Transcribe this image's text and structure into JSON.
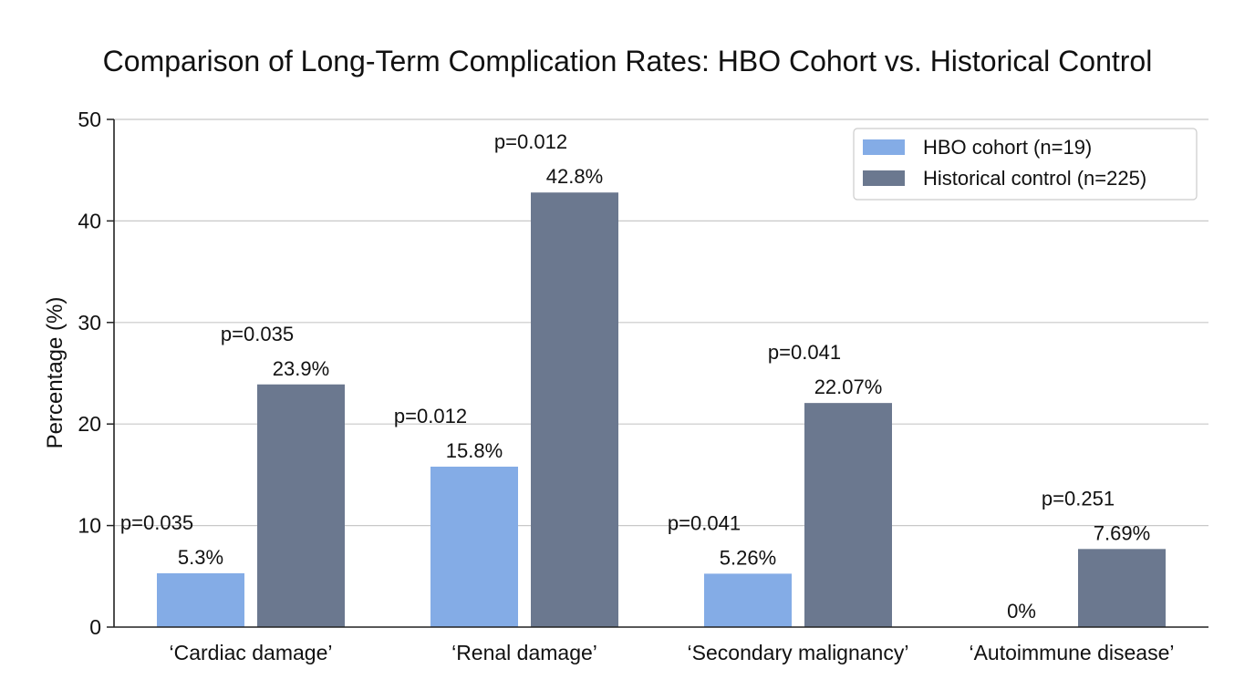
{
  "chart_data": {
    "type": "bar",
    "title": "Comparison of Long-Term Complication Rates: HBO Cohort vs. Historical Control",
    "ylabel": "Percentage (%)",
    "xlabel": "",
    "ylim": [
      0,
      50
    ],
    "yticks": [
      0,
      10,
      20,
      30,
      40,
      50
    ],
    "grid": true,
    "legend_position": "top-right",
    "categories": [
      "‘Cardiac damage’",
      "‘Renal damage’",
      "‘Secondary malignancy’",
      "‘Autoimmune disease’"
    ],
    "series": [
      {
        "name": "HBO cohort (n=19)",
        "color": "#84ace6",
        "values": [
          5.3,
          15.8,
          5.26,
          0
        ],
        "value_labels": [
          "5.3%",
          "15.8%",
          "5.26%",
          "0%"
        ],
        "p_labels": [
          "p=0.035",
          "p=0.012",
          "p=0.041",
          ""
        ]
      },
      {
        "name": "Historical control (n=225)",
        "color": "#6b788f",
        "values": [
          23.9,
          42.8,
          22.07,
          7.69
        ],
        "value_labels": [
          "23.9%",
          "42.8%",
          "22.07%",
          "7.69%"
        ],
        "p_labels": [
          "p=0.035",
          "p=0.012",
          "p=0.041",
          "p=0.251"
        ]
      }
    ]
  }
}
